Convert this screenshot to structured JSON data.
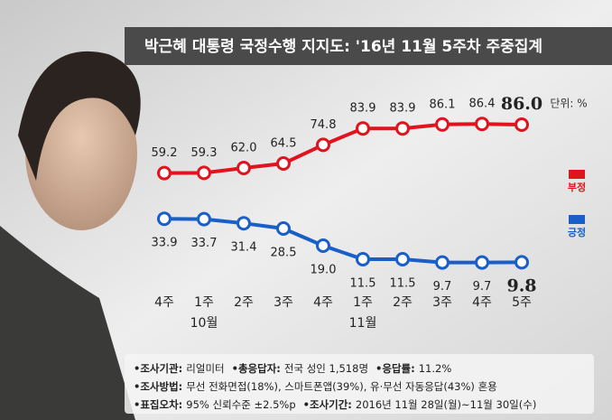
{
  "chart_data": {
    "type": "line",
    "title": "박근혜 대통령 국정수행 지지도: '16년 11월 5주차 주중집계",
    "unit": "단위: %",
    "categories": [
      "4주",
      "1주",
      "2주",
      "3주",
      "4주",
      "1주",
      "2주",
      "3주",
      "4주",
      "5주"
    ],
    "months": [
      null,
      "10월",
      null,
      null,
      null,
      "11월",
      null,
      null,
      null,
      null
    ],
    "series": [
      {
        "name": "부정",
        "color": "#e0141e",
        "values": [
          59.2,
          59.3,
          62.0,
          64.5,
          74.8,
          83.9,
          83.9,
          86.1,
          86.4,
          86.0
        ],
        "value_labels": [
          "59.2",
          "59.3",
          "62.0",
          "64.5",
          "74.8",
          "83.9",
          "83.9",
          "86.1",
          "86.4",
          "86.0"
        ]
      },
      {
        "name": "긍정",
        "color": "#1a5fc8",
        "values": [
          33.9,
          33.7,
          31.4,
          28.5,
          19.0,
          11.5,
          11.5,
          9.7,
          9.7,
          9.8
        ],
        "value_labels": [
          "33.9",
          "33.7",
          "31.4",
          "28.5",
          "19.0",
          "11.5",
          "11.5",
          "9.7",
          "9.7",
          "9.8"
        ]
      }
    ],
    "notes": [
      [
        {
          "label": "•조사기관:",
          "text": "리얼미터"
        },
        {
          "label": "•총응답자:",
          "text": "전국 성인 1,518명"
        },
        {
          "label": "•응답률:",
          "text": "11.2%"
        }
      ],
      [
        {
          "label": "•조사방법:",
          "text": "무선 전화면접(18%), 스마트폰앱(39%), 유·무선 자동응답(43%) 혼용"
        }
      ],
      [
        {
          "label": "•표집오차:",
          "text": "95% 신뢰수준 ±2.5%p"
        },
        {
          "label": "•조사기간:",
          "text": "2016년 11월 28일(월)~11월 30일(수)"
        }
      ]
    ]
  }
}
